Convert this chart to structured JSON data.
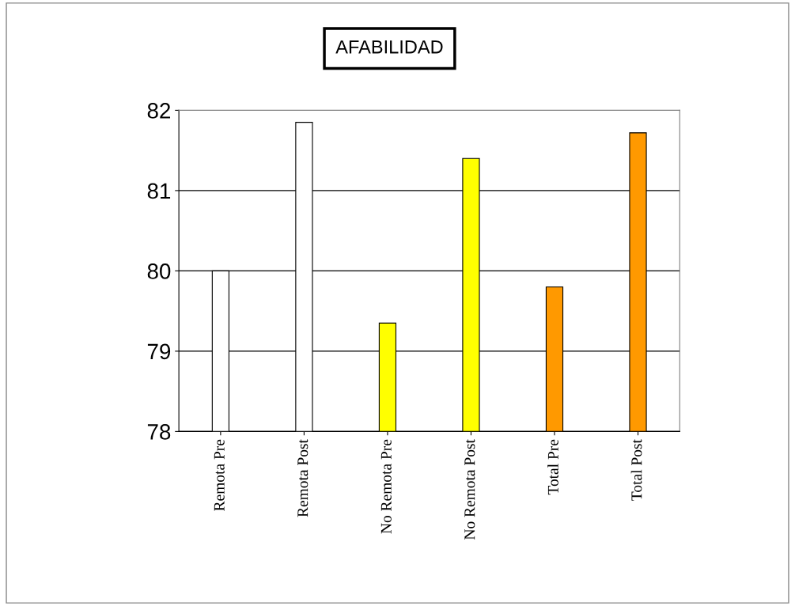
{
  "chart_data": {
    "type": "bar",
    "title": "AFABILIDAD",
    "categories": [
      "Remota Pre",
      "Remota Post",
      "No Remota Pre",
      "No Remota Post",
      "Total Pre",
      "Total Post"
    ],
    "values": [
      80.0,
      81.85,
      79.35,
      81.4,
      79.8,
      81.72
    ],
    "colors": [
      "#ffffff",
      "#ffffff",
      "#ffff00",
      "#ffff00",
      "#ff9900",
      "#ff9900"
    ],
    "ylim": [
      78,
      82
    ],
    "yticks": [
      78,
      79,
      80,
      81,
      82
    ],
    "grid": "y"
  }
}
